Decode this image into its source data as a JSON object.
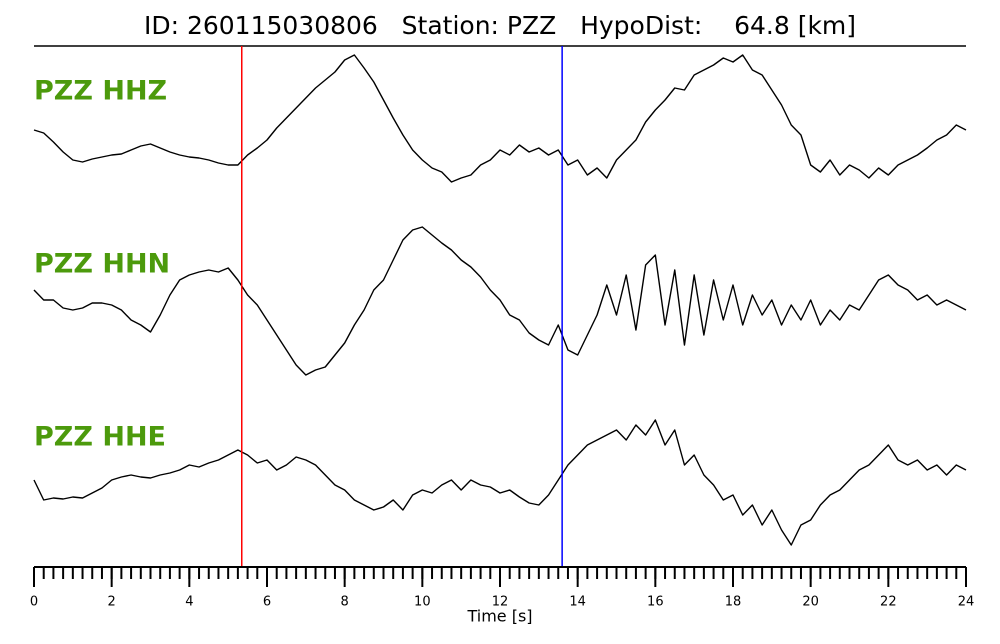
{
  "chart_data": {
    "type": "seismogram",
    "title": "ID: 260115030806   Station: PZZ   HypoDist:    64.8 [km]",
    "xlabel": "Time [s]",
    "xlim": [
      0,
      24
    ],
    "xticks": [
      0,
      2,
      4,
      6,
      8,
      10,
      12,
      14,
      16,
      18,
      20,
      22,
      24
    ],
    "xminor_step": 0.25,
    "label_color": "#4c9a0c",
    "x": [
      0,
      0.25,
      0.5,
      0.75,
      1,
      1.25,
      1.5,
      1.75,
      2,
      2.25,
      2.5,
      2.75,
      3,
      3.25,
      3.5,
      3.75,
      4,
      4.25,
      4.5,
      4.75,
      5,
      5.25,
      5.5,
      5.75,
      6,
      6.25,
      6.5,
      6.75,
      7,
      7.25,
      7.5,
      7.75,
      8,
      8.25,
      8.5,
      8.75,
      9,
      9.25,
      9.5,
      9.75,
      10,
      10.25,
      10.5,
      10.75,
      11,
      11.25,
      11.5,
      11.75,
      12,
      12.25,
      12.5,
      12.75,
      13,
      13.25,
      13.5,
      13.75,
      14,
      14.25,
      14.5,
      14.75,
      15,
      15.25,
      15.5,
      15.75,
      16,
      16.25,
      16.5,
      16.75,
      17,
      17.25,
      17.5,
      17.75,
      18,
      18.25,
      18.5,
      18.75,
      19,
      19.25,
      19.5,
      19.75,
      20,
      20.25,
      20.5,
      20.75,
      21,
      21.25,
      21.5,
      21.75,
      22,
      22.25,
      22.5,
      22.75,
      23,
      23.25,
      23.5,
      23.75,
      24
    ],
    "ylim": [
      -90,
      90
    ],
    "series": [
      {
        "name": "PZZ HHZ",
        "color": "#000000",
        "values": [
          -10,
          -13,
          -22,
          -32,
          -40,
          -42,
          -39,
          -37,
          -35,
          -34,
          -30,
          -26,
          -24,
          -28,
          -32,
          -35,
          -37,
          -38,
          -40,
          -43,
          -45,
          -45,
          -35,
          -28,
          -20,
          -8,
          2,
          12,
          22,
          32,
          40,
          48,
          60,
          65,
          52,
          38,
          20,
          2,
          -15,
          -30,
          -40,
          -48,
          -52,
          -62,
          -58,
          -55,
          -45,
          -40,
          -30,
          -35,
          -25,
          -32,
          -28,
          -35,
          -30,
          -45,
          -40,
          -55,
          -48,
          -58,
          -40,
          -30,
          -20,
          -2,
          10,
          20,
          32,
          30,
          45,
          50,
          55,
          62,
          58,
          65,
          50,
          45,
          30,
          15,
          -5,
          -15,
          -45,
          -52,
          -40,
          -55,
          -45,
          -50,
          -58,
          -48,
          -55,
          -45,
          -40,
          -35,
          -28,
          -20,
          -15,
          -5,
          -10
        ]
      },
      {
        "name": "PZZ HHN",
        "color": "#000000",
        "values": [
          15,
          5,
          5,
          -3,
          -5,
          -3,
          2,
          2,
          0,
          -5,
          -15,
          -20,
          -27,
          -10,
          10,
          25,
          30,
          33,
          35,
          33,
          37,
          25,
          10,
          0,
          -15,
          -30,
          -45,
          -60,
          -70,
          -65,
          -62,
          -50,
          -38,
          -20,
          -5,
          15,
          25,
          45,
          65,
          75,
          78,
          70,
          62,
          55,
          45,
          38,
          28,
          15,
          5,
          -10,
          -15,
          -28,
          -35,
          -40,
          -20,
          -45,
          -50,
          -30,
          -10,
          20,
          -10,
          30,
          -25,
          40,
          50,
          -20,
          35,
          -40,
          30,
          -30,
          25,
          -15,
          20,
          -20,
          10,
          -10,
          5,
          -20,
          0,
          -15,
          5,
          -20,
          -5,
          -15,
          0,
          -5,
          10,
          25,
          30,
          20,
          15,
          5,
          10,
          0,
          5,
          0,
          -5
        ]
      },
      {
        "name": "PZZ HHE",
        "color": "#000000",
        "values": [
          5,
          -15,
          -13,
          -14,
          -12,
          -13,
          -8,
          -3,
          5,
          8,
          10,
          8,
          7,
          10,
          12,
          15,
          20,
          18,
          22,
          25,
          30,
          35,
          30,
          22,
          25,
          15,
          20,
          28,
          25,
          20,
          10,
          0,
          -5,
          -15,
          -20,
          -25,
          -22,
          -15,
          -25,
          -10,
          -5,
          -8,
          0,
          5,
          -5,
          5,
          0,
          -2,
          -8,
          -5,
          -12,
          -18,
          -20,
          -10,
          5,
          20,
          30,
          40,
          45,
          50,
          55,
          45,
          60,
          50,
          65,
          40,
          55,
          20,
          30,
          10,
          0,
          -15,
          -10,
          -30,
          -20,
          -40,
          -25,
          -45,
          -60,
          -40,
          -35,
          -20,
          -10,
          -5,
          5,
          15,
          20,
          30,
          40,
          25,
          20,
          25,
          15,
          20,
          10,
          20,
          15
        ]
      }
    ],
    "picks": [
      {
        "value": 5.35,
        "color": "#ff0000"
      },
      {
        "value": 13.6,
        "color": "#0000ff"
      }
    ]
  }
}
